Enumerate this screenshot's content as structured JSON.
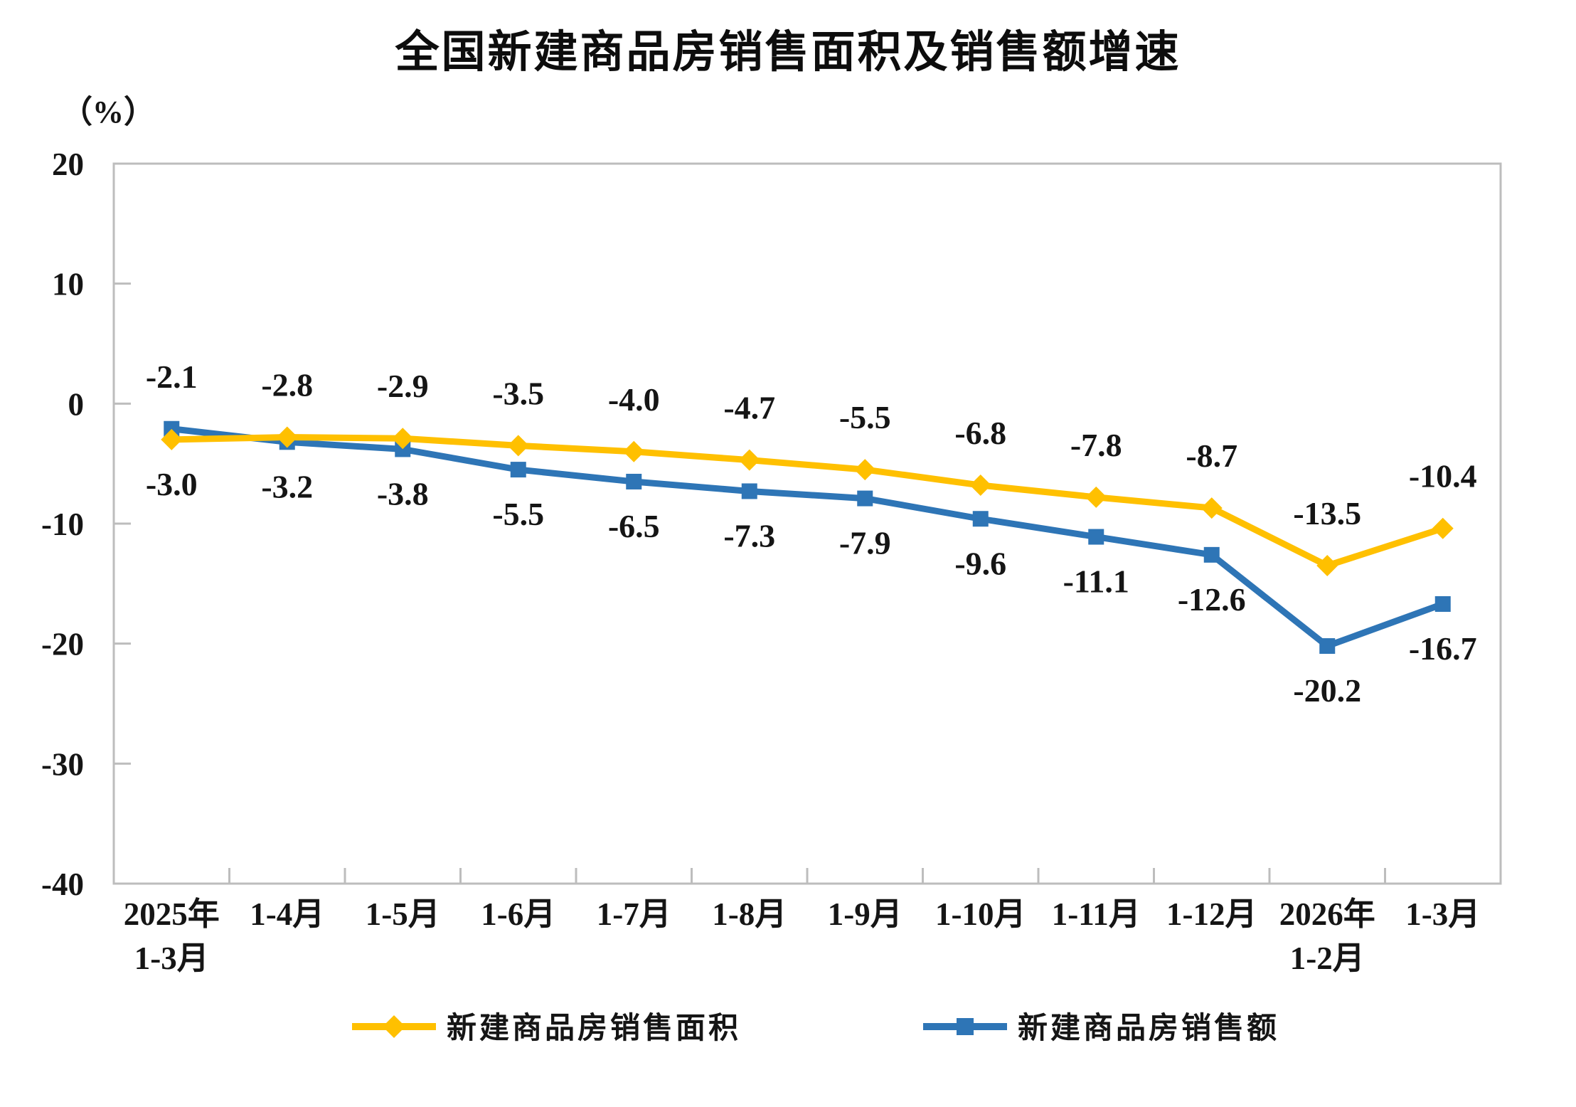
{
  "chart_data": {
    "type": "line",
    "title": "全国新建商品房销售面积及销售额增速",
    "unit_label": "（%）",
    "categories": [
      "2025年\n1-3月",
      "1-4月",
      "1-5月",
      "1-6月",
      "1-7月",
      "1-8月",
      "1-9月",
      "1-10月",
      "1-11月",
      "1-12月",
      "2026年\n1-2月",
      "1-3月"
    ],
    "series": [
      {
        "name": "新建商品房销售面积",
        "color": "#FFC000",
        "marker": "diamond",
        "values": [
          -3.0,
          -2.8,
          -2.9,
          -3.5,
          -4.0,
          -4.7,
          -5.5,
          -6.8,
          -7.8,
          -8.7,
          -13.5,
          -10.4
        ]
      },
      {
        "name": "新建商品房销售额",
        "color": "#2E75B6",
        "marker": "square",
        "values": [
          -2.1,
          -3.2,
          -3.8,
          -5.5,
          -6.5,
          -7.3,
          -7.9,
          -9.6,
          -11.1,
          -12.6,
          -20.2,
          -16.7
        ]
      }
    ],
    "labels_above": [
      "-2.1",
      "-2.8",
      "-2.9",
      "-3.5",
      "-4.0",
      "-4.7",
      "-5.5",
      "-6.8",
      "-7.8",
      "-8.7",
      "-13.5",
      "-10.4"
    ],
    "labels_below": [
      "-3.0",
      "-3.2",
      "-3.8",
      "-5.5",
      "-6.5",
      "-7.3",
      "-7.9",
      "-9.6",
      "-11.1",
      "-12.6",
      "-20.2",
      "-16.7"
    ],
    "y_ticks": [
      20,
      10,
      0,
      -10,
      -20,
      -30,
      -40
    ],
    "ylim": [
      -40,
      20
    ],
    "grid": false,
    "legend_position": "bottom",
    "axis_color": "#BDBDBD",
    "text_color": "#151515"
  }
}
